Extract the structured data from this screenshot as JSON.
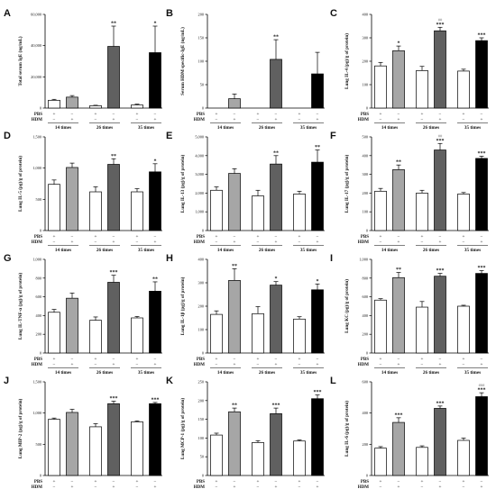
{
  "chart_data": [
    {
      "panel": "A",
      "type": "bar",
      "ylabel": "Total serum IgE (ng/mL)",
      "ylim": [
        0,
        60000
      ],
      "ytick_labels": [
        "0",
        "20,000",
        "40,000",
        "60,000"
      ],
      "values": [
        5000,
        7000,
        1500,
        39500,
        2000,
        35500
      ],
      "errors": [
        600,
        1000,
        300,
        13000,
        500,
        17000
      ],
      "annotations": [
        "",
        "",
        "",
        "**",
        "",
        "*"
      ],
      "annotations2": [
        "",
        "",
        "",
        "",
        "",
        ""
      ]
    },
    {
      "panel": "B",
      "type": "bar",
      "ylabel": "Serum HDM specific-IgE (ng/mL)",
      "ylim": [
        0,
        200
      ],
      "ytick_labels": [
        "0",
        "50",
        "100",
        "150",
        "200"
      ],
      "values": [
        0,
        20,
        0,
        104,
        0,
        73
      ],
      "errors": [
        0,
        10,
        0,
        42,
        0,
        46
      ],
      "annotations": [
        "",
        "",
        "",
        "**",
        "",
        ""
      ],
      "annotations2": [
        "",
        "",
        "",
        "",
        "",
        ""
      ]
    },
    {
      "panel": "C",
      "type": "bar",
      "ylabel": "Lung IL-4 (pg)/g of protein)",
      "ylim": [
        0,
        400
      ],
      "ytick_labels": [
        "0",
        "100",
        "200",
        "300",
        "400"
      ],
      "values": [
        180,
        245,
        160,
        330,
        158,
        288
      ],
      "errors": [
        15,
        20,
        18,
        15,
        8,
        12
      ],
      "annotations": [
        "",
        "*",
        "",
        "***",
        "",
        "***"
      ],
      "annotations2": [
        "",
        "",
        "",
        "##",
        "",
        ""
      ]
    },
    {
      "panel": "D",
      "type": "bar",
      "ylabel": "Lung IL-5 (pg)/g of protein)",
      "ylim": [
        0,
        1500
      ],
      "ytick_labels": [
        "0",
        "500",
        "1,000",
        "1,500"
      ],
      "values": [
        740,
        1010,
        620,
        1060,
        620,
        940
      ],
      "errors": [
        70,
        70,
        80,
        90,
        50,
        130
      ],
      "annotations": [
        "",
        "",
        "",
        "**",
        "",
        "*"
      ],
      "annotations2": [
        "",
        "",
        "",
        "",
        "",
        ""
      ]
    },
    {
      "panel": "E",
      "type": "bar",
      "ylabel": "Lung IL-13 (pg)/g of protein)",
      "ylim": [
        0,
        5000
      ],
      "ytick_labels": [
        "0",
        "1,000",
        "2,000",
        "3,000",
        "4,000",
        "5,000"
      ],
      "values": [
        2150,
        3050,
        1850,
        3550,
        1950,
        3650
      ],
      "errors": [
        180,
        250,
        300,
        450,
        150,
        650
      ],
      "annotations": [
        "",
        "",
        "",
        "**",
        "",
        "**"
      ],
      "annotations2": [
        "",
        "",
        "",
        "",
        "",
        ""
      ]
    },
    {
      "panel": "F",
      "type": "bar",
      "ylabel": "Lung IL-17 (pg)/g of protein)",
      "ylim": [
        0,
        500
      ],
      "ytick_labels": [
        "0",
        "100",
        "200",
        "300",
        "400",
        "500"
      ],
      "values": [
        210,
        325,
        200,
        430,
        195,
        385
      ],
      "errors": [
        15,
        25,
        15,
        35,
        8,
        12
      ],
      "annotations": [
        "",
        "**",
        "",
        "***",
        "",
        "***"
      ],
      "annotations2": [
        "",
        "",
        "",
        "##",
        "",
        ""
      ]
    },
    {
      "panel": "G",
      "type": "bar",
      "ylabel": "Lung IL-TNF-α (pg)/g of protein)",
      "ylim": [
        0,
        1000
      ],
      "ytick_labels": [
        "0",
        "200",
        "400",
        "600",
        "800",
        "1,000"
      ],
      "values": [
        435,
        585,
        350,
        755,
        375,
        660
      ],
      "errors": [
        30,
        55,
        35,
        75,
        15,
        100
      ],
      "annotations": [
        "",
        "",
        "",
        "***",
        "",
        "**"
      ],
      "annotations2": [
        "",
        "",
        "",
        "",
        "",
        ""
      ]
    },
    {
      "panel": "H",
      "type": "bar",
      "ylabel": "Lung IL-1β (pg)/g of protein)",
      "ylim": [
        0,
        400
      ],
      "ytick_labels": [
        "0",
        "100",
        "200",
        "300",
        "400"
      ],
      "values": [
        165,
        310,
        168,
        290,
        145,
        270
      ],
      "errors": [
        15,
        50,
        30,
        15,
        10,
        25
      ],
      "annotations": [
        "",
        "**",
        "",
        "*",
        "",
        "*"
      ],
      "annotations2": [
        "",
        "",
        "",
        "",
        "",
        ""
      ]
    },
    {
      "panel": "I",
      "type": "bar",
      "ylabel": "Lung KC (pg)/g of protein)",
      "ylim": [
        0,
        1000
      ],
      "ytick_labels": [
        "0",
        "200",
        "400",
        "600",
        "800",
        "1,000"
      ],
      "values": [
        565,
        805,
        490,
        820,
        500,
        850
      ],
      "errors": [
        15,
        55,
        60,
        30,
        10,
        30
      ],
      "annotations": [
        "",
        "**",
        "",
        "***",
        "",
        "***"
      ],
      "annotations2": [
        "",
        "",
        "",
        "",
        "",
        ""
      ]
    },
    {
      "panel": "J",
      "type": "bar",
      "ylabel": "Lung MIP-2 (pg)/g of protein)",
      "ylim": [
        0,
        1500
      ],
      "ytick_labels": [
        "0",
        "500",
        "1,000",
        "1,500"
      ],
      "values": [
        900,
        1010,
        780,
        1150,
        860,
        1150
      ],
      "errors": [
        20,
        50,
        50,
        40,
        15,
        20
      ],
      "annotations": [
        "",
        "",
        "",
        "***",
        "",
        "***"
      ],
      "annotations2": [
        "",
        "",
        "",
        "",
        "",
        ""
      ]
    },
    {
      "panel": "K",
      "type": "bar",
      "ylabel": "Lung MCP-1 (pg)/g of protein)",
      "ylim": [
        0,
        250
      ],
      "ytick_labels": [
        "0",
        "50",
        "100",
        "150",
        "200",
        "250"
      ],
      "values": [
        108,
        170,
        88,
        165,
        92,
        205
      ],
      "errors": [
        5,
        10,
        5,
        15,
        3,
        10
      ],
      "annotations": [
        "",
        "**",
        "",
        "***",
        "",
        "***"
      ],
      "annotations2": [
        "",
        "",
        "",
        "",
        "",
        ""
      ]
    },
    {
      "panel": "L",
      "type": "bar",
      "ylabel": "Lung IL-6 (pg)/g of protein)",
      "ylim": [
        0,
        600
      ],
      "ytick_labels": [
        "0",
        "200",
        "400",
        "600"
      ],
      "values": [
        175,
        340,
        180,
        430,
        225,
        505
      ],
      "errors": [
        10,
        30,
        10,
        15,
        15,
        25
      ],
      "annotations": [
        "",
        "***",
        "",
        "***",
        "",
        "***"
      ],
      "annotations2": [
        "",
        "",
        "",
        "",
        "",
        "###"
      ]
    }
  ],
  "groups": [
    "14 times",
    "26 times",
    "35 times"
  ],
  "row_labels": [
    "PBS",
    "HDM"
  ],
  "pbs_signs": [
    "+",
    "−",
    "+",
    "−",
    "+",
    "−"
  ],
  "hdm_signs": [
    "−",
    "+",
    "−",
    "+",
    "−",
    "+"
  ],
  "bar_colors": [
    "#ffffff",
    "#a6a6a6",
    "#ffffff",
    "#606060",
    "#ffffff",
    "#000000"
  ],
  "colors": {
    "axis": "#000000",
    "bar_edge": "#000000"
  }
}
